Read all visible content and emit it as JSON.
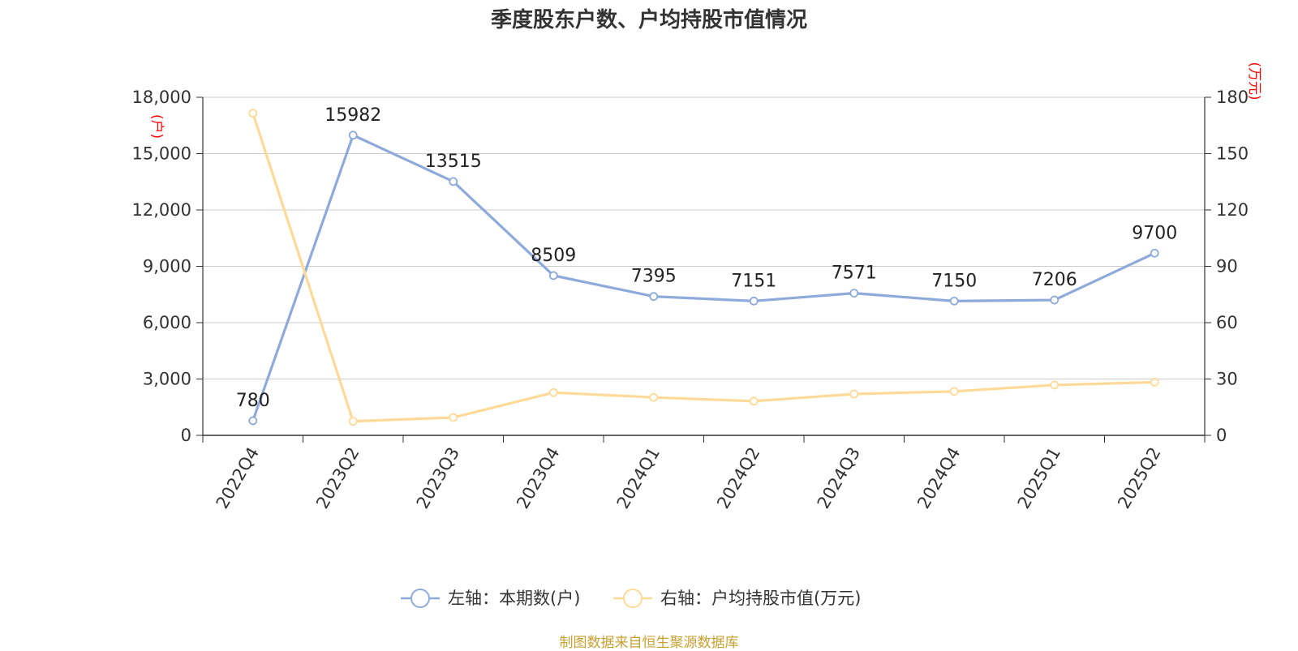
{
  "title": "季度股东户数、户均持股市值情况",
  "source": "制图数据来自恒生聚源数据库",
  "colors": {
    "left_series": "#8eaadb",
    "right_series": "#ffd997",
    "unit_label": "#ff0000",
    "source": "#c8a032"
  },
  "chart_data": {
    "type": "line",
    "categories": [
      "2022Q4",
      "2023Q2",
      "2023Q3",
      "2023Q4",
      "2024Q1",
      "2024Q2",
      "2024Q3",
      "2024Q4",
      "2025Q1",
      "2025Q2"
    ],
    "left_axis": {
      "unit": "(户)",
      "min": 0,
      "max": 18000,
      "ticks": [
        "0",
        "3,000",
        "6,000",
        "9,000",
        "12,000",
        "15,000",
        "18,000"
      ]
    },
    "right_axis": {
      "unit": "(万元)",
      "min": 0,
      "max": 180,
      "ticks": [
        "0",
        "30",
        "60",
        "90",
        "120",
        "150",
        "180"
      ]
    },
    "series": [
      {
        "name": "左轴：本期数(户)",
        "axis": "left",
        "values": [
          780,
          15982,
          13515,
          8509,
          7395,
          7151,
          7571,
          7150,
          7206,
          9700
        ],
        "labels": [
          "780",
          "15982",
          "13515",
          "8509",
          "7395",
          "7151",
          "7571",
          "7150",
          "7206",
          "9700"
        ]
      },
      {
        "name": "右轴：户均持股市值(万元)",
        "axis": "right",
        "values": [
          171.5,
          7.5,
          9.5,
          22.8,
          20.2,
          18.2,
          22.0,
          23.4,
          26.8,
          28.3
        ]
      }
    ],
    "grid": true,
    "legend_position": "bottom"
  }
}
